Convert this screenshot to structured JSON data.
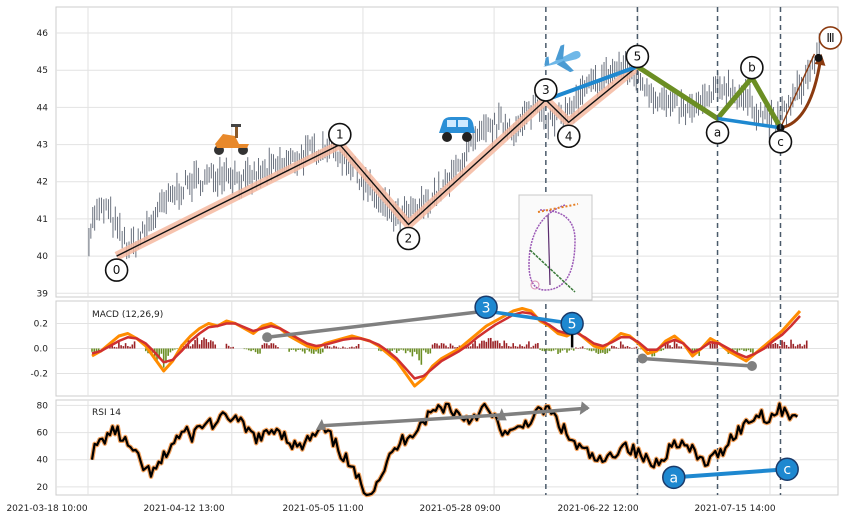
{
  "chart_data": [
    {
      "type": "line",
      "panel": "price",
      "title": "",
      "ylim": [
        38.9,
        46.7
      ],
      "yticks": [
        39,
        40,
        41,
        42,
        43,
        44,
        45,
        46
      ],
      "grid": true,
      "price_series": [
        {
          "x": "2021-03-18 14:00",
          "y": 40.6
        },
        {
          "x": "2021-03-19 14:00",
          "y": 41.1
        },
        {
          "x": "2021-03-21 14:00",
          "y": 41.3
        },
        {
          "x": "2021-03-23 14:00",
          "y": 40.7
        },
        {
          "x": "2021-03-25 14:00",
          "y": 40.2
        },
        {
          "x": "2021-03-27 14:00",
          "y": 40.5
        },
        {
          "x": "2021-03-30 14:00",
          "y": 41.2
        },
        {
          "x": "2021-04-02 14:00",
          "y": 41.7
        },
        {
          "x": "2021-04-05 14:00",
          "y": 42.0
        },
        {
          "x": "2021-04-08 14:00",
          "y": 42.1
        },
        {
          "x": "2021-04-11 14:00",
          "y": 42.3
        },
        {
          "x": "2021-04-14 14:00",
          "y": 42.0
        },
        {
          "x": "2021-04-17 14:00",
          "y": 42.2
        },
        {
          "x": "2021-04-20 14:00",
          "y": 42.4
        },
        {
          "x": "2021-04-23 14:00",
          "y": 42.6
        },
        {
          "x": "2021-04-26 14:00",
          "y": 42.8
        },
        {
          "x": "2021-04-29 14:00",
          "y": 43.0
        },
        {
          "x": "2021-05-02 14:00",
          "y": 42.6
        },
        {
          "x": "2021-05-05 14:00",
          "y": 42.0
        },
        {
          "x": "2021-05-08 14:00",
          "y": 41.4
        },
        {
          "x": "2021-05-11 14:00",
          "y": 41.0
        },
        {
          "x": "2021-05-14 14:00",
          "y": 41.2
        },
        {
          "x": "2021-05-17 14:00",
          "y": 41.6
        },
        {
          "x": "2021-05-20 14:00",
          "y": 42.0
        },
        {
          "x": "2021-05-23 14:00",
          "y": 42.8
        },
        {
          "x": "2021-05-26 14:00",
          "y": 43.3
        },
        {
          "x": "2021-05-29 14:00",
          "y": 43.6
        },
        {
          "x": "2021-06-01 14:00",
          "y": 43.4
        },
        {
          "x": "2021-06-04 14:00",
          "y": 44.1
        },
        {
          "x": "2021-06-07 14:00",
          "y": 43.6
        },
        {
          "x": "2021-06-10 14:00",
          "y": 43.9
        },
        {
          "x": "2021-06-13 14:00",
          "y": 44.5
        },
        {
          "x": "2021-06-16 14:00",
          "y": 44.8
        },
        {
          "x": "2021-06-19 14:00",
          "y": 45.1
        },
        {
          "x": "2021-06-22 14:00",
          "y": 44.8
        },
        {
          "x": "2021-06-25 14:00",
          "y": 44.3
        },
        {
          "x": "2021-06-28 14:00",
          "y": 44.0
        },
        {
          "x": "2021-07-01 14:00",
          "y": 43.9
        },
        {
          "x": "2021-07-04 14:00",
          "y": 44.2
        },
        {
          "x": "2021-07-07 14:00",
          "y": 44.6
        },
        {
          "x": "2021-07-10 14:00",
          "y": 44.3
        },
        {
          "x": "2021-07-13 14:00",
          "y": 43.9
        },
        {
          "x": "2021-07-16 14:00",
          "y": 43.6
        },
        {
          "x": "2021-07-19 14:00",
          "y": 44.2
        },
        {
          "x": "2021-07-22 14:00",
          "y": 45.0
        },
        {
          "x": "2021-07-24 14:00",
          "y": 45.6
        }
      ],
      "wave_labels": [
        {
          "label": "0",
          "x": "2021-03-23 10:00",
          "y": 40.0
        },
        {
          "label": "1",
          "x": "2021-05-01 10:00",
          "y": 43.0
        },
        {
          "label": "2",
          "x": "2021-05-13 10:00",
          "y": 40.85
        },
        {
          "label": "3",
          "x": "2021-06-06 10:00",
          "y": 44.2
        },
        {
          "label": "4",
          "x": "2021-06-10 10:00",
          "y": 43.6
        },
        {
          "label": "5",
          "x": "2021-06-22 10:00",
          "y": 45.1
        },
        {
          "label": "a",
          "x": "2021-07-06 10:00",
          "y": 43.7
        },
        {
          "label": "b",
          "x": "2021-07-12 10:00",
          "y": 44.8
        },
        {
          "label": "c",
          "x": "2021-07-17 10:00",
          "y": 43.45
        },
        {
          "label": "Ⅲ",
          "x": "2021-07-24 18:00",
          "y": 45.6
        }
      ],
      "vlines": [
        "2021-06-06 10:00",
        "2021-06-22 10:00",
        "2021-07-06 10:00",
        "2021-07-17 10:00"
      ],
      "colors": {
        "impulse_band": "#f5b8a0",
        "impulse_line": "#111111",
        "blue": "#1e88d0",
        "green": "#6b8e23",
        "brown": "#8b3a0f",
        "dashed": "#4a5a6a"
      }
    },
    {
      "type": "line",
      "panel": "macd",
      "title": "MACD (12,26,9)",
      "ylim": [
        -0.38,
        0.38
      ],
      "yticks": [
        -0.2,
        0.0,
        0.2
      ],
      "macd": [
        -0.06,
        -0.02,
        0.04,
        0.1,
        0.12,
        0.08,
        0.02,
        -0.08,
        -0.18,
        -0.1,
        0.02,
        0.1,
        0.16,
        0.2,
        0.18,
        0.22,
        0.2,
        0.16,
        0.12,
        0.18,
        0.2,
        0.16,
        0.1,
        0.06,
        0.02,
        0.0,
        0.04,
        0.06,
        0.08,
        0.1,
        0.08,
        0.06,
        0.02,
        -0.04,
        -0.1,
        -0.2,
        -0.3,
        -0.24,
        -0.14,
        -0.08,
        -0.04,
        0.0,
        0.06,
        0.12,
        0.18,
        0.22,
        0.26,
        0.3,
        0.32,
        0.3,
        0.22,
        0.18,
        0.12,
        0.1,
        0.14,
        0.08,
        0.02,
        0.0,
        0.06,
        0.12,
        0.1,
        0.04,
        -0.04,
        -0.02,
        0.06,
        0.1,
        0.04,
        -0.06,
        0.0,
        0.08,
        0.04,
        -0.02,
        -0.06,
        -0.1,
        -0.04,
        0.02,
        0.08,
        0.14,
        0.22,
        0.3
      ],
      "signal": [
        -0.04,
        -0.02,
        0.02,
        0.06,
        0.09,
        0.08,
        0.04,
        -0.03,
        -0.11,
        -0.09,
        -0.02,
        0.06,
        0.12,
        0.17,
        0.18,
        0.2,
        0.2,
        0.17,
        0.14,
        0.16,
        0.18,
        0.16,
        0.12,
        0.08,
        0.04,
        0.02,
        0.03,
        0.05,
        0.07,
        0.08,
        0.08,
        0.06,
        0.03,
        -0.02,
        -0.08,
        -0.16,
        -0.24,
        -0.22,
        -0.16,
        -0.1,
        -0.06,
        -0.02,
        0.03,
        0.09,
        0.14,
        0.19,
        0.23,
        0.27,
        0.29,
        0.28,
        0.23,
        0.19,
        0.14,
        0.12,
        0.13,
        0.09,
        0.04,
        0.02,
        0.05,
        0.09,
        0.09,
        0.05,
        -0.01,
        -0.01,
        0.04,
        0.07,
        0.04,
        -0.03,
        0.0,
        0.05,
        0.04,
        0.0,
        -0.04,
        -0.07,
        -0.04,
        0.0,
        0.06,
        0.11,
        0.18,
        0.26
      ],
      "divergence_lines": [
        {
          "from": [
            0.27,
            0.09
          ],
          "to": [
            0.55,
            0.3
          ],
          "color": "#808080"
        },
        {
          "from": [
            0.55,
            0.3
          ],
          "to": [
            0.66,
            0.2
          ],
          "color": "#1e88d0"
        },
        {
          "from": [
            0.75,
            -0.08
          ],
          "to": [
            0.89,
            -0.14
          ],
          "color": "#808080"
        }
      ],
      "markers": [
        {
          "label": "3"
        },
        {
          "label": "5"
        }
      ],
      "colors": {
        "macd": "#ff8c00",
        "signal": "#d03030",
        "hist_pos": "#9b2226",
        "hist_neg": "#6b8e23"
      }
    },
    {
      "type": "line",
      "panel": "rsi",
      "title": "RSI 14",
      "ylim": [
        14,
        84
      ],
      "yticks": [
        20,
        40,
        60,
        80
      ],
      "rsi": [
        45,
        52,
        58,
        62,
        55,
        48,
        40,
        32,
        30,
        38,
        48,
        56,
        60,
        58,
        64,
        68,
        66,
        70,
        72,
        68,
        62,
        58,
        55,
        60,
        64,
        58,
        52,
        48,
        54,
        58,
        62,
        56,
        48,
        40,
        30,
        22,
        16,
        24,
        34,
        44,
        52,
        58,
        62,
        68,
        74,
        78,
        80,
        76,
        72,
        70,
        74,
        78,
        72,
        64,
        58,
        60,
        66,
        70,
        74,
        78,
        72,
        64,
        56,
        50,
        46,
        42,
        38,
        40,
        46,
        52,
        48,
        44,
        40,
        36,
        42,
        48,
        54,
        50,
        46,
        40,
        38,
        42,
        48,
        56,
        62,
        66,
        72,
        74,
        70,
        76,
        78,
        72,
        66
      ],
      "divergence_lines": [
        {
          "points": "top-gray",
          "color": "#808080"
        },
        {
          "points": "bottom-blue",
          "color": "#1e88d0"
        }
      ],
      "markers": [
        {
          "label": "a"
        },
        {
          "label": "c"
        }
      ],
      "colors": {
        "rsi": "#000000",
        "rsi_glow": "#f4a460"
      }
    }
  ],
  "x_axis": {
    "tick_labels": [
      "2021-03-18 10:00",
      "2021-04-12 13:00",
      "2021-05-05 11:00",
      "2021-05-28 09:00",
      "2021-06-22 12:00",
      "2021-07-15 14:00"
    ]
  },
  "icons": {
    "scooter": "scooter-icon",
    "car": "car-icon",
    "plane": "airplane-icon",
    "inset": "loop-diagram-thumbnail"
  }
}
